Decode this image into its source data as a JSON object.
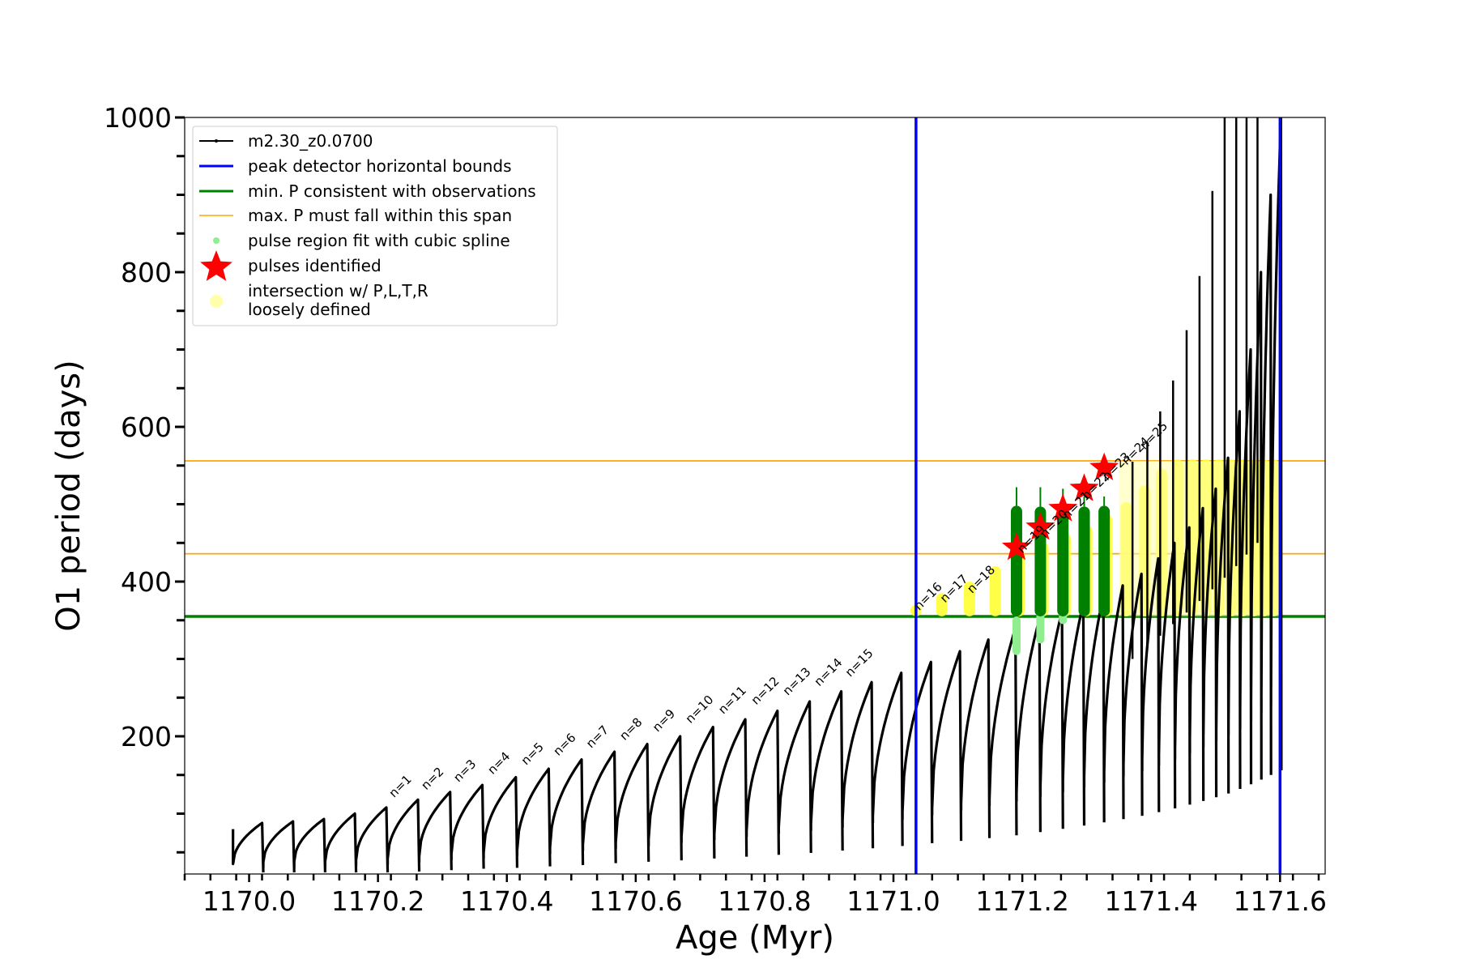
{
  "chart_data": {
    "type": "line",
    "xlabel": "Age (Myr)",
    "ylabel": "O1 period (days)",
    "xlim": [
      1169.9,
      1171.67
    ],
    "ylim": [
      22,
      1000
    ],
    "x_ticks": [
      1170.0,
      1170.2,
      1170.4,
      1170.6,
      1170.8,
      1171.0,
      1171.2,
      1171.4,
      1171.6
    ],
    "x_tick_labels": [
      "1170.0",
      "1170.2",
      "1170.4",
      "1170.6",
      "1170.8",
      "1171.0",
      "1171.2",
      "1171.4",
      "1171.6"
    ],
    "y_ticks": [
      200,
      400,
      600,
      800,
      1000
    ],
    "y_tick_labels": [
      "200",
      "400",
      "600",
      "800",
      "1000"
    ],
    "legend": {
      "position": "upper-left",
      "entries": [
        {
          "label": "m2.30_z0.0700",
          "style": "line-marker",
          "color": "#000000"
        },
        {
          "label": "peak detector horizontal bounds",
          "style": "line",
          "color": "#0000ff"
        },
        {
          "label": "min. P consistent with observations",
          "style": "line",
          "color": "#008000"
        },
        {
          "label": "max. P must fall within this span",
          "style": "thin-line",
          "color": "#ffa500"
        },
        {
          "label": "pulse region fit with cubic spline",
          "style": "dot",
          "color": "#90ee90"
        },
        {
          "label": "pulses identified",
          "style": "star",
          "color": "#ff0000"
        },
        {
          "label": "intersection w/ P,L,T,R",
          "label2": "loosely defined",
          "style": "circle",
          "color": "#ffffaa"
        }
      ]
    },
    "series": [
      {
        "name": "m2.30_z0.0700",
        "color": "#000000",
        "pulses_note": "thermal pulse cycles: start age, base period (days), peak period (days), dip period (days)",
        "cycles": [
          [
            1169.975,
            35,
            88,
            80
          ],
          [
            1170.022,
            37,
            90,
            30
          ],
          [
            1170.07,
            38,
            93,
            30
          ],
          [
            1170.118,
            38,
            100,
            30
          ],
          [
            1170.166,
            40,
            108,
            32
          ],
          [
            1170.215,
            42,
            118,
            34
          ],
          [
            1170.264,
            45,
            128,
            37
          ],
          [
            1170.314,
            48,
            137,
            40
          ],
          [
            1170.364,
            50,
            147,
            42
          ],
          [
            1170.416,
            53,
            158,
            45
          ],
          [
            1170.467,
            56,
            170,
            48
          ],
          [
            1170.518,
            60,
            180,
            52
          ],
          [
            1170.569,
            63,
            190,
            55
          ],
          [
            1170.62,
            66,
            200,
            58
          ],
          [
            1170.671,
            70,
            212,
            62
          ],
          [
            1170.722,
            74,
            222,
            66
          ],
          [
            1170.772,
            78,
            233,
            70
          ],
          [
            1170.822,
            82,
            245,
            74
          ],
          [
            1170.872,
            87,
            258,
            78
          ],
          [
            1170.921,
            92,
            270,
            82
          ],
          [
            1170.968,
            97,
            282,
            88
          ],
          [
            1171.014,
            103,
            296,
            92
          ],
          [
            1171.06,
            108,
            310,
            98
          ],
          [
            1171.105,
            114,
            325,
            104
          ],
          [
            1171.149,
            120,
            340,
            110
          ],
          [
            1171.191,
            127,
            352,
            116
          ],
          [
            1171.228,
            134,
            362,
            122
          ],
          [
            1171.263,
            141,
            372,
            128
          ],
          [
            1171.296,
            148,
            382,
            134
          ],
          [
            1171.327,
            155,
            395,
            140
          ],
          [
            1171.357,
            162,
            410,
            148
          ],
          [
            1171.386,
            170,
            430,
            155
          ],
          [
            1171.412,
            178,
            450,
            162
          ],
          [
            1171.437,
            186,
            470,
            170
          ],
          [
            1171.46,
            194,
            495,
            178
          ],
          [
            1171.481,
            202,
            520,
            186
          ],
          [
            1171.501,
            210,
            560,
            194
          ],
          [
            1171.52,
            220,
            620,
            202
          ],
          [
            1171.538,
            230,
            700,
            210
          ],
          [
            1171.555,
            240,
            800,
            220
          ],
          [
            1171.571,
            250,
            900,
            230
          ],
          [
            1171.586,
            260,
            1000,
            240
          ]
        ],
        "spikes": [
          {
            "x": 1171.371,
            "top": 555
          },
          {
            "x": 1171.394,
            "top": 580
          },
          {
            "x": 1171.414,
            "top": 620
          },
          {
            "x": 1171.434,
            "top": 660
          },
          {
            "x": 1171.455,
            "top": 725
          },
          {
            "x": 1171.475,
            "top": 795
          },
          {
            "x": 1171.495,
            "top": 905
          },
          {
            "x": 1171.514,
            "top": 1000
          },
          {
            "x": 1171.532,
            "top": 1000
          },
          {
            "x": 1171.548,
            "top": 1000
          },
          {
            "x": 1171.565,
            "top": 1000
          }
        ]
      }
    ],
    "peak_detector_bounds_x": [
      1171.035,
      1171.6
    ],
    "min_P": 355,
    "max_P_span": [
      436,
      556
    ],
    "pulse_labels": [
      {
        "text": "n=1",
        "x": 1170.225,
        "y": 120
      },
      {
        "text": "n=2",
        "x": 1170.275,
        "y": 130
      },
      {
        "text": "n=3",
        "x": 1170.325,
        "y": 140
      },
      {
        "text": "n=4",
        "x": 1170.378,
        "y": 150
      },
      {
        "text": "n=5",
        "x": 1170.43,
        "y": 162
      },
      {
        "text": "n=6",
        "x": 1170.48,
        "y": 174
      },
      {
        "text": "n=7",
        "x": 1170.531,
        "y": 184
      },
      {
        "text": "n=8",
        "x": 1170.583,
        "y": 194
      },
      {
        "text": "n=9",
        "x": 1170.634,
        "y": 205
      },
      {
        "text": "n=10",
        "x": 1170.685,
        "y": 216
      },
      {
        "text": "n=11",
        "x": 1170.736,
        "y": 228
      },
      {
        "text": "n=12",
        "x": 1170.787,
        "y": 240
      },
      {
        "text": "n=13",
        "x": 1170.836,
        "y": 252
      },
      {
        "text": "n=14",
        "x": 1170.885,
        "y": 264
      },
      {
        "text": "n=15",
        "x": 1170.933,
        "y": 276
      },
      {
        "text": "n=16",
        "x": 1171.04,
        "y": 362
      },
      {
        "text": "n=17",
        "x": 1171.08,
        "y": 372
      },
      {
        "text": "n=18",
        "x": 1171.122,
        "y": 384
      },
      {
        "text": "n=19",
        "x": 1171.2,
        "y": 436
      },
      {
        "text": "n=20",
        "x": 1171.235,
        "y": 456
      },
      {
        "text": "n=21",
        "x": 1171.27,
        "y": 480
      },
      {
        "text": "n=22",
        "x": 1171.3,
        "y": 505
      },
      {
        "text": "n=23",
        "x": 1171.332,
        "y": 530
      },
      {
        "text": "n=24",
        "x": 1171.362,
        "y": 550
      },
      {
        "text": "n=25",
        "x": 1171.39,
        "y": 570
      }
    ],
    "pulses_identified": [
      {
        "x": 1171.191,
        "y": 444
      },
      {
        "x": 1171.228,
        "y": 470
      },
      {
        "x": 1171.263,
        "y": 494
      },
      {
        "x": 1171.296,
        "y": 520
      },
      {
        "x": 1171.327,
        "y": 547
      }
    ],
    "green_pulse_bars": [
      {
        "x": 1171.191,
        "low": 355,
        "high": 498,
        "tip": 522
      },
      {
        "x": 1171.228,
        "low": 355,
        "high": 497,
        "tip": 522
      },
      {
        "x": 1171.263,
        "low": 355,
        "high": 498,
        "tip": 520
      },
      {
        "x": 1171.296,
        "low": 355,
        "high": 497,
        "tip": 510
      },
      {
        "x": 1171.327,
        "low": 355,
        "high": 498,
        "tip": 510
      }
    ],
    "spline_fit_points": [
      {
        "x": 1171.191,
        "low": 305,
        "high": 355
      },
      {
        "x": 1171.228,
        "low": 320,
        "high": 360
      },
      {
        "x": 1171.263,
        "low": 345,
        "high": 360
      }
    ],
    "yellow_regions": [
      {
        "x": 1171.035,
        "low": 355,
        "high": 370
      },
      {
        "x": 1171.075,
        "low": 355,
        "high": 385
      },
      {
        "x": 1171.118,
        "low": 355,
        "high": 400
      },
      {
        "x": 1171.158,
        "low": 355,
        "high": 420
      }
    ]
  }
}
